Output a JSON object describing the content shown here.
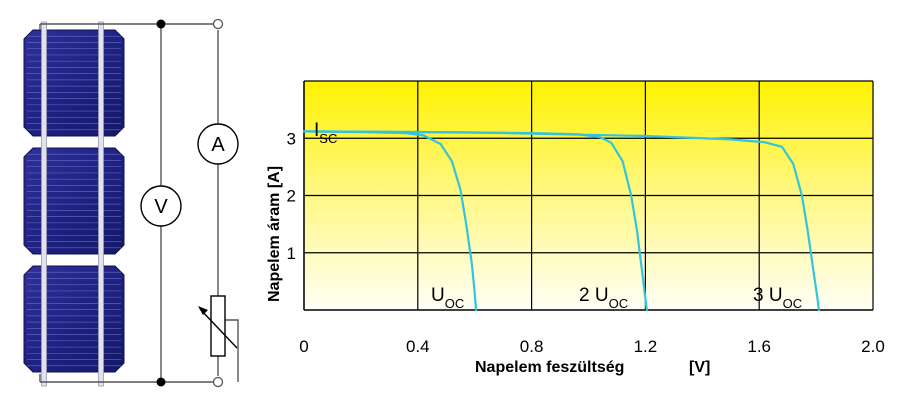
{
  "chart_data": {
    "type": "line",
    "xlabel": "Napelem feszültség",
    "xunit": "[V]",
    "ylabel": "Napelem áram [A]",
    "xlim": [
      0,
      2.0
    ],
    "ylim": [
      0,
      4
    ],
    "x_ticks": [
      "0",
      "0.4",
      "0.8",
      "1.2",
      "1.6",
      "2.0"
    ],
    "y_ticks": [
      "1",
      "2",
      "3"
    ],
    "grid": true,
    "background": "yellow-to-white vertical gradient",
    "series_color": "#33c4dc",
    "series": [
      {
        "x": [
          0,
          0.2,
          0.36,
          0.42,
          0.48,
          0.52,
          0.55,
          0.57,
          0.59,
          0.6,
          0.605
        ],
        "y": [
          3.12,
          3.11,
          3.09,
          3.05,
          2.9,
          2.6,
          2.1,
          1.5,
          0.8,
          0.3,
          0
        ]
      },
      {
        "x": [
          0,
          0.4,
          0.8,
          0.96,
          1.04,
          1.08,
          1.12,
          1.15,
          1.17,
          1.19,
          1.2,
          1.205
        ],
        "y": [
          3.12,
          3.11,
          3.09,
          3.07,
          3.02,
          2.92,
          2.6,
          2.0,
          1.4,
          0.6,
          0.2,
          0
        ]
      },
      {
        "x": [
          0,
          0.6,
          1.2,
          1.5,
          1.62,
          1.68,
          1.72,
          1.75,
          1.77,
          1.79,
          1.805,
          1.81
        ],
        "y": [
          3.12,
          3.1,
          3.04,
          2.98,
          2.93,
          2.85,
          2.55,
          2.0,
          1.4,
          0.7,
          0.2,
          0
        ]
      }
    ],
    "annotations": [
      {
        "main": "I",
        "sub": "SC"
      },
      {
        "main": "U",
        "sub": "OC"
      },
      {
        "main": "2 U",
        "sub": "OC"
      },
      {
        "main": "3 U",
        "sub": "OC"
      }
    ]
  },
  "circuit": {
    "cell_count": 3,
    "voltmeter_label": "V",
    "ammeter_label": "A"
  }
}
